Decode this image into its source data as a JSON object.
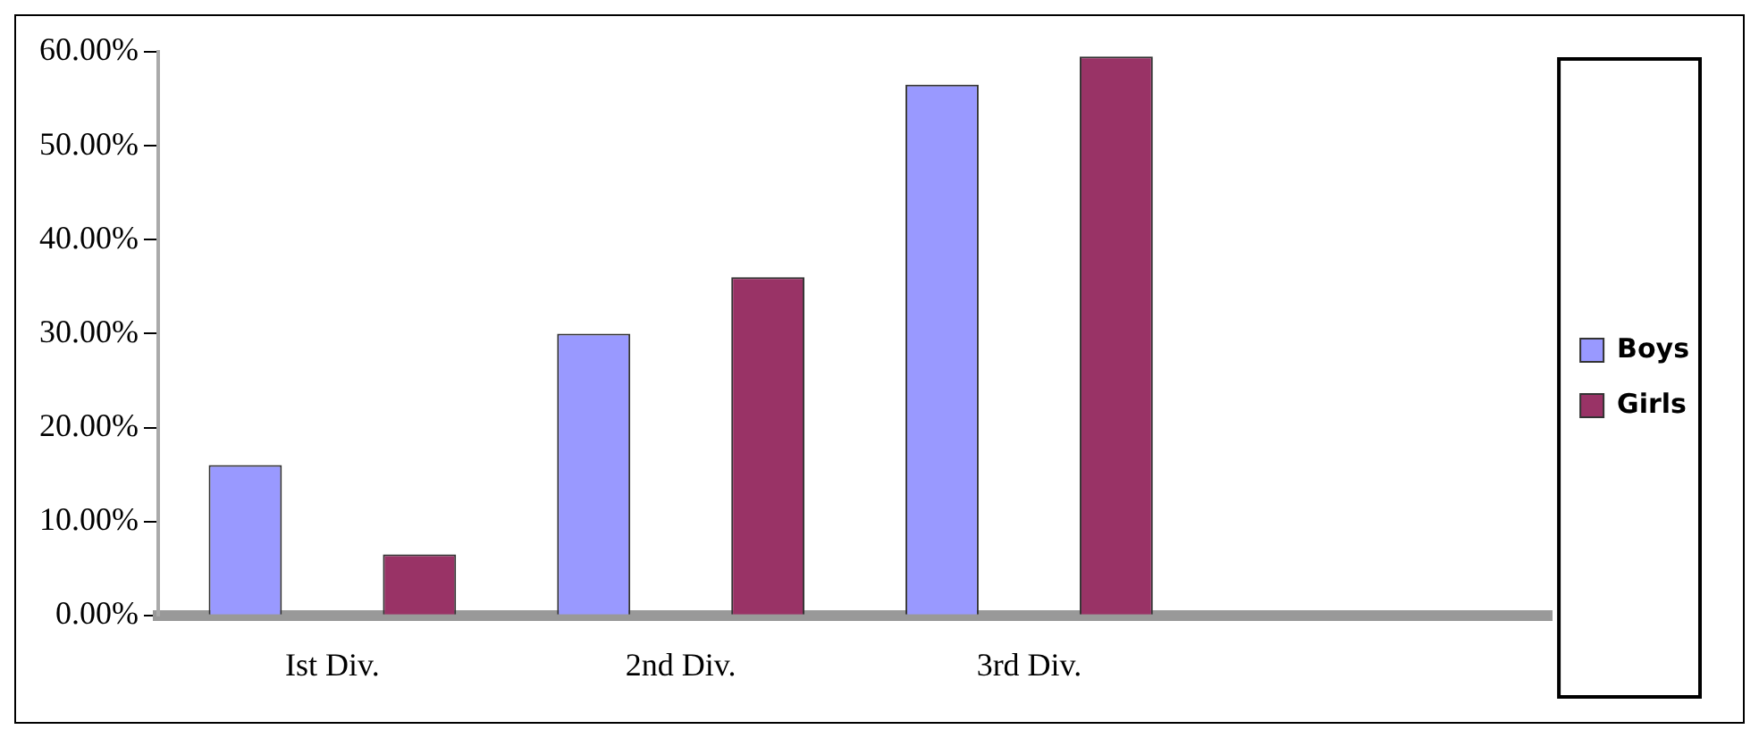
{
  "chart_data": {
    "type": "bar",
    "categories": [
      "Ist Div.",
      "2nd Div.",
      "3rd Div.",
      null
    ],
    "series": [
      {
        "name": "Boys",
        "color": "#9999ff",
        "values": [
          16,
          30,
          56.5,
          null
        ]
      },
      {
        "name": "Girls",
        "color": "#993366",
        "values": [
          6.5,
          36,
          59.5,
          null
        ]
      }
    ],
    "ylim": [
      0,
      60
    ],
    "yticks": [
      {
        "value": 0,
        "label": "0.00%"
      },
      {
        "value": 10,
        "label": "10.00%"
      },
      {
        "value": 20,
        "label": "20.00%"
      },
      {
        "value": 30,
        "label": "30.00%"
      },
      {
        "value": 40,
        "label": "40.00%"
      },
      {
        "value": 50,
        "label": "50.00%"
      },
      {
        "value": 60,
        "label": "60.00%"
      }
    ],
    "grid": false,
    "legend": "right"
  }
}
